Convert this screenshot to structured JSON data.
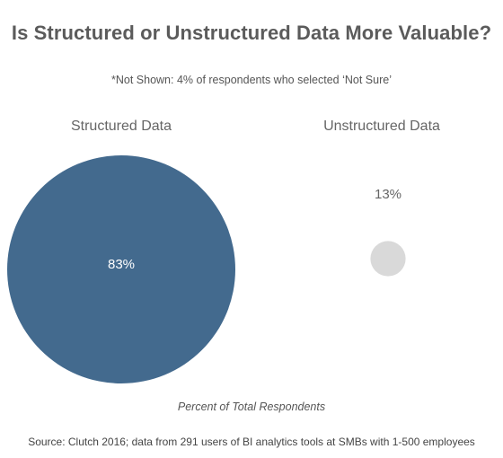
{
  "chart_data": {
    "type": "bubble",
    "title": "Is Structured or Unstructured Data More Valuable?",
    "subtitle": "*Not Shown: 4% of respondents who selected ‘Not Sure’",
    "categories": [
      "Structured Data",
      "Unstructured Data"
    ],
    "values": [
      83,
      13
    ],
    "value_labels": [
      "83%",
      "13%"
    ],
    "unit": "%",
    "colors": [
      "#436a8e",
      "#d9d9d9"
    ],
    "xlabel": "Percent of Total Respondents",
    "legend": "none",
    "grid": false
  },
  "source": "Source: Clutch 2016; data from 291 users of BI analytics tools at SMBs with 1-500 employees"
}
